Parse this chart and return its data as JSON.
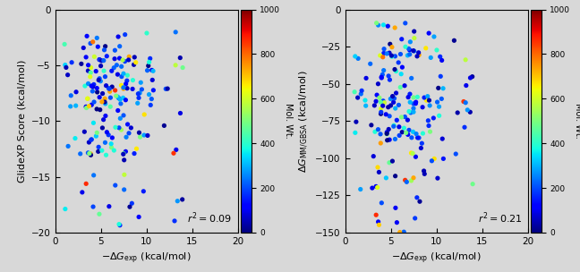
{
  "plot1": {
    "xlabel": "$-\\Delta G_{\\mathrm{exp}}$ (kcal/mol)",
    "ylabel": "GlideXP Score (kcal/mol)",
    "xlim": [
      0,
      20
    ],
    "ylim": [
      -20,
      0
    ],
    "r2_text": "$r^2 = 0.09$",
    "xticks": [
      0,
      5,
      10,
      15,
      20
    ],
    "yticks": [
      0,
      -5,
      -10,
      -15,
      -20
    ]
  },
  "plot2": {
    "xlabel": "$-\\Delta G_{\\mathrm{exp}}$ (kcal/mol)",
    "ylabel": "$\\Delta G_{\\mathrm{MM/GBSA}}$ (kcal/mol)",
    "xlim": [
      0,
      20
    ],
    "ylim": [
      -150,
      0
    ],
    "r2_text": "$r^2 = 0.21$",
    "xticks": [
      0,
      5,
      10,
      15,
      20
    ],
    "yticks": [
      0,
      -25,
      -50,
      -75,
      -100,
      -125,
      -150
    ]
  },
  "colorbar": {
    "label": "Mol. Wt.",
    "vmin": 0,
    "vmax": 1000,
    "ticks": [
      0,
      200,
      400,
      600,
      800,
      1000
    ]
  },
  "figure": {
    "bg_color": "#d8d8d8",
    "plot_bg": "#d8d8d8"
  }
}
